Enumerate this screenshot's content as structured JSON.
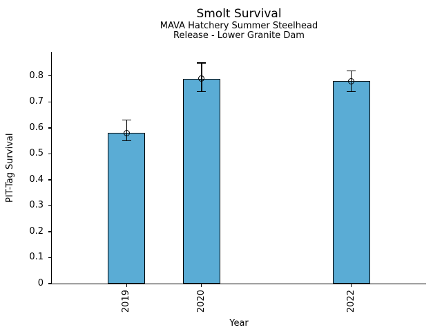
{
  "chart_data": {
    "type": "bar",
    "title": "Smolt Survival",
    "subtitle_line1": "MAVA Hatchery Summer Steelhead",
    "subtitle_line2": "Release - Lower Granite Dam",
    "xlabel": "Year",
    "ylabel": "PIT-Tag Survival",
    "categories": [
      "2019",
      "2020",
      "2022"
    ],
    "x": [
      2019,
      2020,
      2022
    ],
    "values": [
      0.58,
      0.79,
      0.78
    ],
    "error_low": [
      0.55,
      0.74,
      0.74
    ],
    "error_high": [
      0.63,
      0.85,
      0.82
    ],
    "xlim": [
      2018,
      2023
    ],
    "ylim": [
      0,
      0.893
    ],
    "yticks": [
      0,
      0.1,
      0.2,
      0.3,
      0.4,
      0.5,
      0.6,
      0.7,
      0.8
    ],
    "ytick_labels": [
      "0",
      "0.1",
      "0.2",
      "0.3",
      "0.4",
      "0.5",
      "0.6",
      "0.7",
      "0.8"
    ],
    "bar_width": 0.5,
    "bar_color": "#5AACD5",
    "bar_edge_color": "#000000",
    "axis_color": "#000000",
    "marker": "open-circle",
    "error_bars": true,
    "grid": false,
    "legend": false
  }
}
